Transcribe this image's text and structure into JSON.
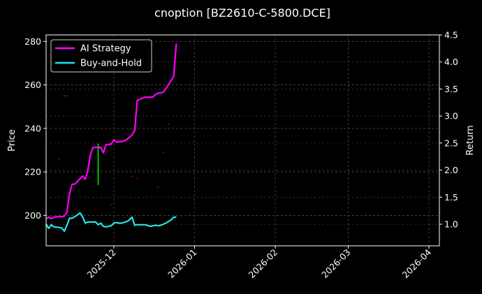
{
  "chart_data": {
    "type": "line",
    "title": "cnoption [BZ2610-C-5800.DCE]",
    "ylabel": "Price",
    "y2label": "Return",
    "x_ticks": [
      "2025-12",
      "2026-01",
      "2026-02",
      "2026-03",
      "2026-04"
    ],
    "xlim": [
      "2025-11-05",
      "2026-04-05"
    ],
    "ylim": [
      186,
      283
    ],
    "y_ticks": [
      200,
      220,
      240,
      260,
      280
    ],
    "y2lim": [
      0.6,
      4.5
    ],
    "y2_ticks": [
      "1.0",
      "1.5",
      "2.0",
      "2.5",
      "3.0",
      "3.5",
      "4.0",
      "4.5"
    ],
    "grid": true,
    "legend": {
      "placement": "top-left",
      "entries": [
        "AI Strategy",
        "Buy-and-Hold"
      ]
    },
    "colors": {
      "ai": "#ff00ff",
      "bh": "#22e5e5",
      "buy_marker": "#00c000",
      "sell_marker": "#ff0000",
      "background": "#000000",
      "grid": "#555555"
    },
    "series": [
      {
        "name": "AI Strategy",
        "axis": "right",
        "x": [
          "2025-11-05",
          "2025-11-06",
          "2025-11-07",
          "2025-11-08",
          "2025-11-10",
          "2025-11-11",
          "2025-11-12",
          "2025-11-13",
          "2025-11-14",
          "2025-11-15",
          "2025-11-16",
          "2025-11-17",
          "2025-11-18",
          "2025-11-19",
          "2025-11-20",
          "2025-11-21",
          "2025-11-22",
          "2025-11-23",
          "2025-11-24",
          "2025-11-25",
          "2025-11-26",
          "2025-11-27",
          "2025-11-28",
          "2025-11-30",
          "2025-12-01",
          "2025-12-02",
          "2025-12-04",
          "2025-12-05",
          "2025-12-06",
          "2025-12-08",
          "2025-12-09",
          "2025-12-10",
          "2025-12-11",
          "2025-12-13",
          "2025-12-14",
          "2025-12-15",
          "2025-12-16",
          "2025-12-17",
          "2025-12-18",
          "2025-12-20",
          "2025-12-21",
          "2025-12-22",
          "2025-12-23",
          "2025-12-24",
          "2025-12-25"
        ],
        "values": [
          1.1,
          1.13,
          1.1,
          1.13,
          1.14,
          1.14,
          1.15,
          1.22,
          1.57,
          1.74,
          1.74,
          1.79,
          1.84,
          1.89,
          1.83,
          1.99,
          2.28,
          2.42,
          2.42,
          2.42,
          2.42,
          2.32,
          2.47,
          2.48,
          2.56,
          2.52,
          2.53,
          2.54,
          2.57,
          2.65,
          2.73,
          3.29,
          3.31,
          3.35,
          3.35,
          3.35,
          3.35,
          3.4,
          3.42,
          3.44,
          3.51,
          3.58,
          3.66,
          3.74,
          4.34
        ]
      },
      {
        "name": "Buy-and-Hold",
        "axis": "right",
        "x": [
          "2025-11-05",
          "2025-11-06",
          "2025-11-07",
          "2025-11-08",
          "2025-11-10",
          "2025-11-11",
          "2025-11-12",
          "2025-11-13",
          "2025-11-14",
          "2025-11-15",
          "2025-11-16",
          "2025-11-17",
          "2025-11-18",
          "2025-11-19",
          "2025-11-20",
          "2025-11-21",
          "2025-11-22",
          "2025-11-23",
          "2025-11-24",
          "2025-11-25",
          "2025-11-26",
          "2025-11-27",
          "2025-11-28",
          "2025-11-29",
          "2025-11-30",
          "2025-12-01",
          "2025-12-02",
          "2025-12-03",
          "2025-12-04",
          "2025-12-06",
          "2025-12-07",
          "2025-12-08",
          "2025-12-09",
          "2025-12-10",
          "2025-12-12",
          "2025-12-13",
          "2025-12-15",
          "2025-12-16",
          "2025-12-17",
          "2025-12-18",
          "2025-12-19",
          "2025-12-21",
          "2025-12-22",
          "2025-12-23",
          "2025-12-24",
          "2025-12-25"
        ],
        "values": [
          1.0,
          0.92,
          0.99,
          0.95,
          0.94,
          0.93,
          0.87,
          0.98,
          1.11,
          1.11,
          1.14,
          1.17,
          1.21,
          1.14,
          1.02,
          1.04,
          1.04,
          1.04,
          1.04,
          0.99,
          1.02,
          0.96,
          0.95,
          0.96,
          0.97,
          1.02,
          1.03,
          1.02,
          1.02,
          1.05,
          1.08,
          1.13,
          0.98,
          0.99,
          0.99,
          0.99,
          0.96,
          0.97,
          0.98,
          0.97,
          0.98,
          1.02,
          1.05,
          1.08,
          1.13,
          1.13
        ]
      }
    ],
    "buy_markers": [
      {
        "x": "2025-11-25",
        "y_price_low": 214,
        "y_price_high": 233
      }
    ],
    "sell_markers": [
      {
        "x": "2025-11-05",
        "y_price": 223
      },
      {
        "x": "2025-11-10",
        "y_price": 226
      },
      {
        "x": "2025-11-12",
        "y_price": 255
      },
      {
        "x": "2025-11-13",
        "y_price": 255
      },
      {
        "x": "2025-11-30",
        "y_price": 205
      },
      {
        "x": "2025-12-08",
        "y_price": 218
      },
      {
        "x": "2025-12-10",
        "y_price": 217
      },
      {
        "x": "2025-12-18",
        "y_price": 213
      },
      {
        "x": "2025-12-20",
        "y_price": 229
      },
      {
        "x": "2025-12-22",
        "y_price": 242
      }
    ]
  }
}
